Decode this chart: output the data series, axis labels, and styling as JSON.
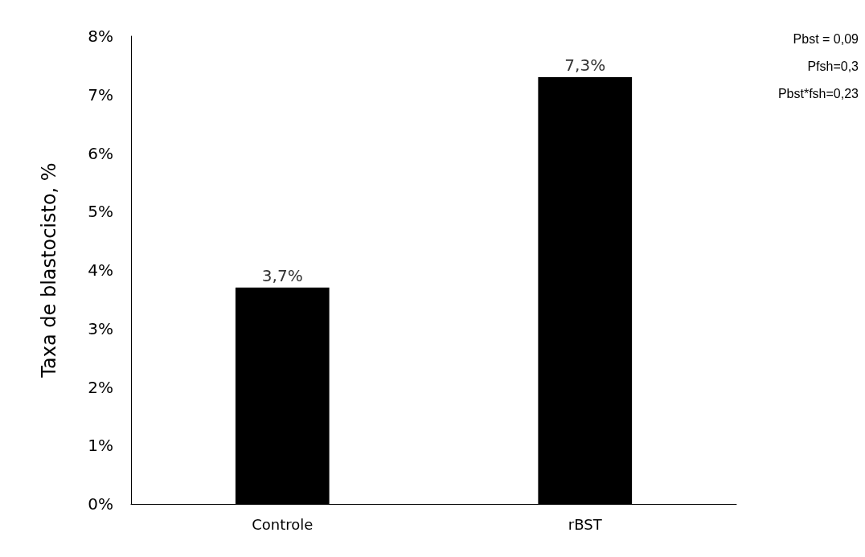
{
  "chart_data": {
    "type": "bar",
    "ylabel": "Taxa de blastocisto, %",
    "categories": [
      "Controle",
      "rBST"
    ],
    "values": [
      3.7,
      7.3
    ],
    "value_labels": [
      "3,7%",
      "7,3%"
    ],
    "color": "#000000",
    "ylim": [
      0,
      8
    ],
    "yticks": [
      {
        "value": 0,
        "label": "0%"
      },
      {
        "value": 1,
        "label": "1%"
      },
      {
        "value": 2,
        "label": "2%"
      },
      {
        "value": 3,
        "label": "3%"
      },
      {
        "value": 4,
        "label": "4%"
      },
      {
        "value": 5,
        "label": "5%"
      },
      {
        "value": 6,
        "label": "6%"
      },
      {
        "value": 7,
        "label": "7%"
      },
      {
        "value": 8,
        "label": "8%"
      }
    ],
    "grid": false,
    "annotations": [
      "Pbst = 0,09",
      "Pfsh=0,3",
      "Pbst*fsh=0,23"
    ]
  }
}
